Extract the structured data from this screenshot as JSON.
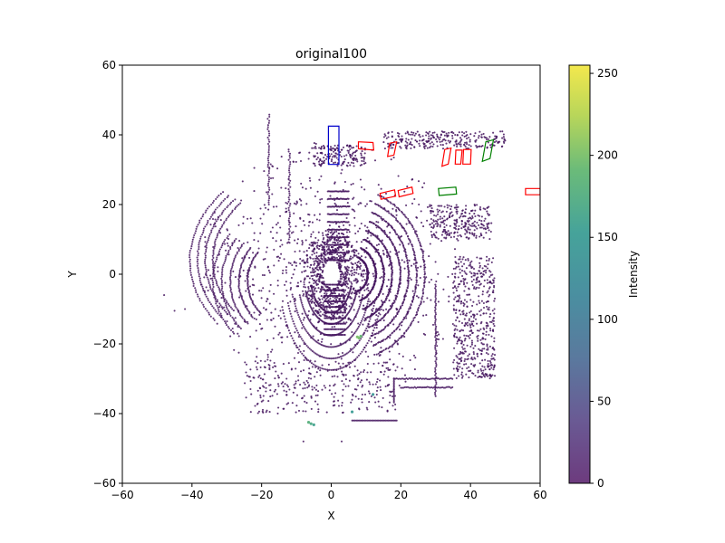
{
  "chart_data": {
    "type": "scatter",
    "title": "original100",
    "xlabel": "X",
    "ylabel": "Y",
    "xlim": [
      -60,
      60
    ],
    "ylim": [
      -60,
      60
    ],
    "xticks": [
      -60,
      -40,
      -20,
      0,
      20,
      40,
      60
    ],
    "yticks": [
      -60,
      -40,
      -20,
      0,
      20,
      40,
      60
    ],
    "grid": false,
    "colorbar": {
      "label": "Intensity",
      "range": [
        0,
        255
      ],
      "ticks": [
        0,
        50,
        100,
        150,
        200,
        250
      ],
      "colormap": "viridis"
    },
    "point_color": "#45165f",
    "boxes": [
      {
        "color": "#0000cc",
        "corners": [
          [
            -0.8,
            31.5
          ],
          [
            2.2,
            31.5
          ],
          [
            2.2,
            42.5
          ],
          [
            -0.8,
            42.5
          ]
        ]
      },
      {
        "color": "#ff0000",
        "corners": [
          [
            7.8,
            36.0
          ],
          [
            12.2,
            35.6
          ],
          [
            12.0,
            37.8
          ],
          [
            7.8,
            38.0
          ]
        ]
      },
      {
        "color": "#ff0000",
        "corners": [
          [
            16.2,
            33.8
          ],
          [
            18.0,
            34.2
          ],
          [
            18.8,
            38.0
          ],
          [
            16.8,
            37.6
          ]
        ]
      },
      {
        "color": "#ff0000",
        "corners": [
          [
            14.3,
            21.5
          ],
          [
            18.5,
            22.4
          ],
          [
            18.2,
            24.2
          ],
          [
            14.0,
            23.2
          ]
        ]
      },
      {
        "color": "#ff0000",
        "corners": [
          [
            19.5,
            22.2
          ],
          [
            23.5,
            23.2
          ],
          [
            23.2,
            25.0
          ],
          [
            19.2,
            24.0
          ]
        ]
      },
      {
        "color": "#ff0000",
        "corners": [
          [
            31.8,
            31.0
          ],
          [
            33.6,
            31.6
          ],
          [
            34.4,
            36.2
          ],
          [
            32.6,
            35.8
          ]
        ]
      },
      {
        "color": "#ff0000",
        "corners": [
          [
            35.6,
            31.6
          ],
          [
            37.2,
            31.6
          ],
          [
            37.6,
            35.6
          ],
          [
            35.8,
            35.6
          ]
        ]
      },
      {
        "color": "#ff0000",
        "corners": [
          [
            37.8,
            31.6
          ],
          [
            40.0,
            31.6
          ],
          [
            40.2,
            35.8
          ],
          [
            38.0,
            35.8
          ]
        ]
      },
      {
        "color": "#ff0000",
        "corners": [
          [
            55.8,
            22.8
          ],
          [
            60.0,
            22.8
          ],
          [
            60.0,
            24.6
          ],
          [
            55.8,
            24.6
          ]
        ]
      },
      {
        "color": "#008000",
        "corners": [
          [
            31.0,
            22.6
          ],
          [
            36.0,
            23.0
          ],
          [
            35.8,
            25.0
          ],
          [
            30.8,
            24.6
          ]
        ]
      },
      {
        "color": "#008000",
        "corners": [
          [
            43.4,
            32.4
          ],
          [
            45.6,
            33.2
          ],
          [
            46.6,
            38.6
          ],
          [
            44.4,
            38.0
          ]
        ]
      }
    ],
    "highlight_points": [
      {
        "x": 7.5,
        "y": -18.0,
        "intensity": 200
      },
      {
        "x": 8.0,
        "y": -18.3,
        "intensity": 200
      },
      {
        "x": 8.5,
        "y": -17.8,
        "intensity": 190
      },
      {
        "x": -6.5,
        "y": -42.5,
        "intensity": 180
      },
      {
        "x": -5.8,
        "y": -42.9,
        "intensity": 170
      },
      {
        "x": -5.0,
        "y": -43.2,
        "intensity": 160
      },
      {
        "x": 6.0,
        "y": -39.5,
        "intensity": 150
      },
      {
        "x": 12.0,
        "y": -34.5,
        "intensity": 140
      }
    ]
  }
}
